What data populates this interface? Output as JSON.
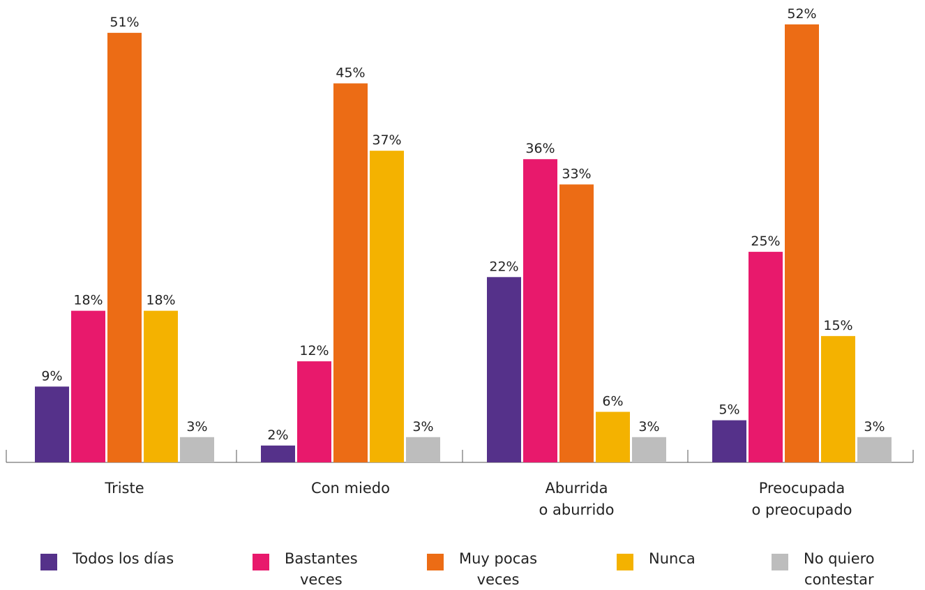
{
  "chart_data": {
    "type": "bar",
    "title": "",
    "xlabel": "",
    "ylabel": "",
    "ylim": [
      0,
      52
    ],
    "grid": false,
    "legend_position": "bottom",
    "value_suffix": "%",
    "categories": [
      "Triste",
      "Con miedo",
      "Aburrida\no aburrido",
      "Preocupada\no preocupado"
    ],
    "series": [
      {
        "name": "Todos los días",
        "color": "#55318a",
        "values": [
          9,
          2,
          22,
          5
        ]
      },
      {
        "name": "Bastantes\nveces",
        "color": "#e8196c",
        "values": [
          18,
          12,
          36,
          25
        ]
      },
      {
        "name": "Muy pocas\nveces",
        "color": "#ec6c15",
        "values": [
          51,
          45,
          33,
          52
        ]
      },
      {
        "name": "Nunca",
        "color": "#f4b200",
        "values": [
          18,
          37,
          6,
          15
        ]
      },
      {
        "name": "No quiero\ncontestar",
        "color": "#bdbdbd",
        "values": [
          3,
          3,
          3,
          3
        ]
      }
    ]
  }
}
